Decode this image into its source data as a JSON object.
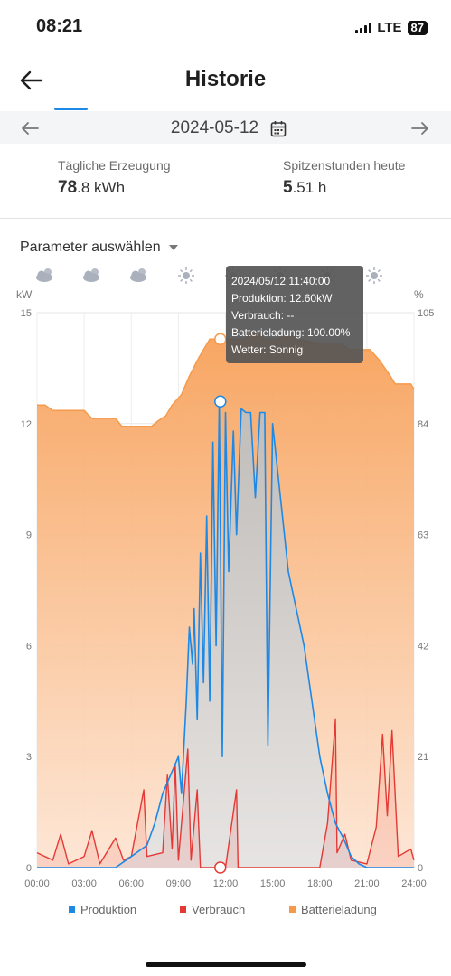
{
  "status_bar": {
    "time": "08:21",
    "network": "LTE",
    "battery": "87"
  },
  "header": {
    "title": "Historie"
  },
  "date_nav": {
    "date": "2024-05-12"
  },
  "stats": {
    "daily_label": "Tägliche Erzeugung",
    "daily_int": "78",
    "daily_frac": ".8 kWh",
    "peak_label": "Spitzenstunden heute",
    "peak_int": "5",
    "peak_frac": ".51 h"
  },
  "param_select": {
    "label": "Parameter auswählen"
  },
  "weather_icons": [
    "partly-cloudy-icon",
    "partly-cloudy-icon",
    "partly-cloudy-icon",
    "sun-icon",
    "sun-icon",
    "sun-icon",
    "sun-icon",
    "sun-icon"
  ],
  "tooltip": {
    "line1": "2024/05/12 11:40:00",
    "line2": "Produktion: 12.60kW",
    "line3": "Verbrauch: --",
    "line4": "Batterieladung: 100.00%",
    "line5": "Wetter: Sonnig"
  },
  "colors": {
    "produktion": "#1e88e5",
    "verbrauch": "#e53935",
    "batterie": "#f59a4a",
    "accent": "#1e88e5"
  },
  "chart_data": {
    "type": "line",
    "xlabel": "",
    "x_ticks": [
      "00:00",
      "03:00",
      "06:00",
      "09:00",
      "12:00",
      "15:00",
      "18:00",
      "21:00",
      "24:00"
    ],
    "y_left": {
      "unit": "kW",
      "min": 0,
      "max": 15,
      "ticks": [
        0,
        3,
        6,
        9,
        12,
        15
      ]
    },
    "y_right": {
      "unit": "%",
      "min": 0,
      "max": 105,
      "ticks": [
        0,
        21,
        42,
        63,
        84,
        105
      ]
    },
    "grid": true,
    "legend_position": "bottom",
    "highlight_hour": 11.67,
    "series": [
      {
        "name": "Produktion",
        "axis": "left",
        "color": "#1e88e5",
        "points": [
          [
            0,
            0
          ],
          [
            5,
            0
          ],
          [
            6,
            0.3
          ],
          [
            7,
            0.6
          ],
          [
            7.5,
            1.2
          ],
          [
            8,
            2
          ],
          [
            8.5,
            2.5
          ],
          [
            9,
            3
          ],
          [
            9.2,
            2
          ],
          [
            9.5,
            4.5
          ],
          [
            9.7,
            6.5
          ],
          [
            9.9,
            5.5
          ],
          [
            10,
            7
          ],
          [
            10.2,
            4
          ],
          [
            10.4,
            8.5
          ],
          [
            10.6,
            5
          ],
          [
            10.8,
            9.5
          ],
          [
            11,
            4.5
          ],
          [
            11.2,
            11.5
          ],
          [
            11.4,
            6
          ],
          [
            11.6,
            12.6
          ],
          [
            11.8,
            3
          ],
          [
            12,
            12.3
          ],
          [
            12.2,
            8
          ],
          [
            12.5,
            11.8
          ],
          [
            12.7,
            9
          ],
          [
            13,
            12.4
          ],
          [
            13.3,
            12.3
          ],
          [
            13.6,
            12.3
          ],
          [
            13.9,
            10
          ],
          [
            14.2,
            12.3
          ],
          [
            14.5,
            12.3
          ],
          [
            14.7,
            3.3
          ],
          [
            15,
            12
          ],
          [
            15.5,
            10
          ],
          [
            16,
            8
          ],
          [
            16.5,
            7
          ],
          [
            17,
            6
          ],
          [
            17.5,
            4.5
          ],
          [
            18,
            3
          ],
          [
            18.5,
            2
          ],
          [
            19,
            1.2
          ],
          [
            19.5,
            0.8
          ],
          [
            20,
            0.3
          ],
          [
            20.5,
            0.1
          ],
          [
            21,
            0
          ],
          [
            24,
            0
          ]
        ]
      },
      {
        "name": "Verbrauch",
        "axis": "left",
        "color": "#e53935",
        "points": [
          [
            0,
            0.4
          ],
          [
            1,
            0.2
          ],
          [
            1.5,
            0.9
          ],
          [
            2,
            0.1
          ],
          [
            3,
            0.3
          ],
          [
            3.5,
            1.0
          ],
          [
            4,
            0.1
          ],
          [
            5,
            0.8
          ],
          [
            5.5,
            0.2
          ],
          [
            6,
            0.3
          ],
          [
            6.8,
            2.1
          ],
          [
            7,
            0.3
          ],
          [
            8,
            0.4
          ],
          [
            8.3,
            2.5
          ],
          [
            8.6,
            0.5
          ],
          [
            8.8,
            2.8
          ],
          [
            9,
            0.2
          ],
          [
            9.6,
            3.2
          ],
          [
            9.8,
            0.2
          ],
          [
            10.2,
            2.1
          ],
          [
            10.4,
            0
          ],
          [
            11,
            0
          ],
          [
            12,
            0
          ],
          [
            12.7,
            2.1
          ],
          [
            12.8,
            0
          ],
          [
            18,
            0
          ],
          [
            18.5,
            1.2
          ],
          [
            19,
            4.0
          ],
          [
            19.1,
            0.4
          ],
          [
            19.6,
            0.9
          ],
          [
            20,
            0.2
          ],
          [
            21,
            0.1
          ],
          [
            21.6,
            1.1
          ],
          [
            22,
            3.6
          ],
          [
            22.3,
            1.4
          ],
          [
            22.6,
            3.7
          ],
          [
            23,
            0.3
          ],
          [
            23.8,
            0.5
          ],
          [
            24,
            0.2
          ]
        ]
      },
      {
        "name": "Batterieladung",
        "axis": "right",
        "color": "#f59a4a",
        "points": [
          [
            0,
            87.5
          ],
          [
            0.5,
            87.5
          ],
          [
            1,
            86.5
          ],
          [
            3,
            86.5
          ],
          [
            3.5,
            85
          ],
          [
            5,
            85
          ],
          [
            5.4,
            83.5
          ],
          [
            7.3,
            83.5
          ],
          [
            7.7,
            84.5
          ],
          [
            8.2,
            85.5
          ],
          [
            8.6,
            87.5
          ],
          [
            9.2,
            89.5
          ],
          [
            9.7,
            93
          ],
          [
            10.3,
            96.5
          ],
          [
            11,
            100
          ],
          [
            12,
            100
          ],
          [
            13.2,
            100
          ],
          [
            13.6,
            101
          ],
          [
            14,
            101
          ],
          [
            14.5,
            100
          ],
          [
            15.3,
            100
          ],
          [
            15.8,
            101
          ],
          [
            16.7,
            100
          ],
          [
            17.4,
            99.5
          ],
          [
            18.2,
            99
          ],
          [
            19.4,
            99
          ],
          [
            19.9,
            98
          ],
          [
            21.2,
            98
          ],
          [
            21.8,
            96
          ],
          [
            22.5,
            93
          ],
          [
            22.8,
            91.5
          ],
          [
            23.8,
            91.5
          ],
          [
            24,
            90.5
          ]
        ]
      }
    ]
  },
  "legend": {
    "produktion": "Produktion",
    "verbrauch": "Verbrauch",
    "batterie": "Batterieladung"
  }
}
